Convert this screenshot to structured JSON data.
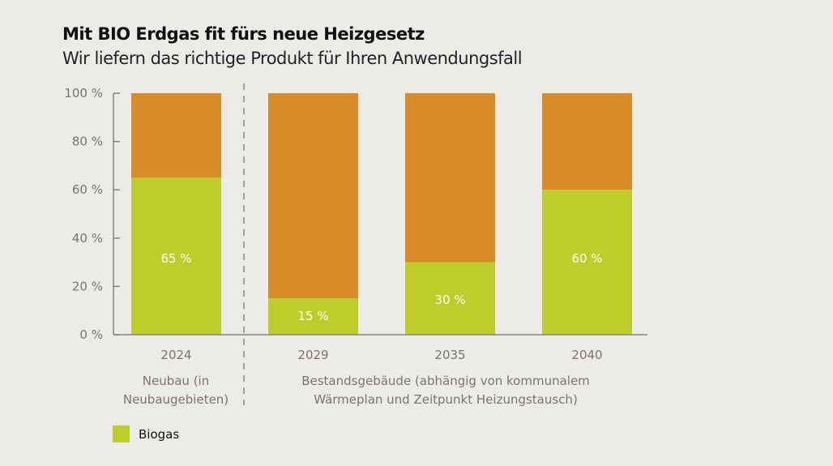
{
  "title": "Mit BIO Erdgas fit fürs neue Heizgesetz",
  "subtitle": "Wir liefern das richtige Produkt für Ihren Anwendungsfall",
  "colors": {
    "biogas": "#bfcd2b",
    "rest": "#d88b27",
    "axis": "#8a8480",
    "text": "#7a7370"
  },
  "chart_data": {
    "type": "bar",
    "stacked": true,
    "title": "Mit BIO Erdgas fit fürs neue Heizgesetz",
    "subtitle": "Wir liefern das richtige Produkt für Ihren Anwendungsfall",
    "categories": [
      "2024",
      "2029",
      "2035",
      "2040"
    ],
    "series": [
      {
        "name": "Biogas",
        "values": [
          65,
          15,
          30,
          60
        ]
      },
      {
        "name": "",
        "values": [
          35,
          85,
          70,
          40
        ]
      }
    ],
    "data_labels": [
      "65 %",
      "15 %",
      "30 %",
      "60 %"
    ],
    "yticks": [
      "0 %",
      "20 %",
      "40 %",
      "60 %",
      "80 %",
      "100 %"
    ],
    "ylim": [
      0,
      100
    ],
    "xlabel": "",
    "ylabel": "",
    "groups": [
      {
        "label_lines": [
          "Neubau (in",
          "Neubaugebieten)"
        ],
        "categories": [
          "2024"
        ]
      },
      {
        "label_lines": [
          "Bestandsgebäude (abhängig von kommunalem",
          "Wärmeplan und Zeitpunkt Heizungstausch)"
        ],
        "categories": [
          "2029",
          "2035",
          "2040"
        ]
      }
    ],
    "legend": {
      "entries": [
        "Biogas"
      ],
      "position": "bottom-left"
    },
    "grid": false
  }
}
